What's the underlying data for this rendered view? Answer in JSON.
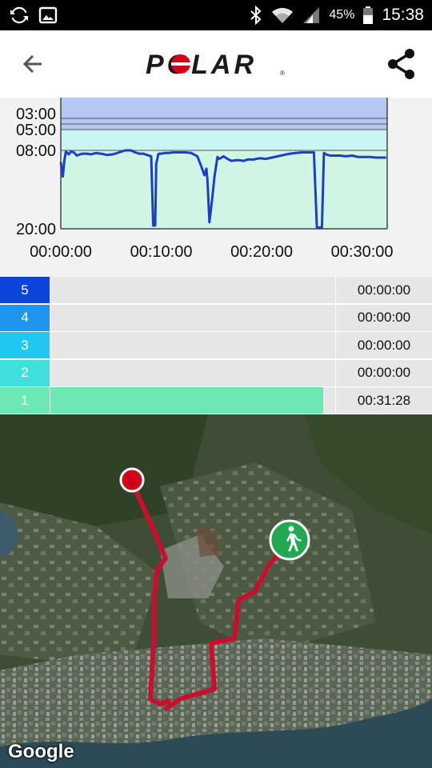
{
  "status_bar": {
    "battery_percent": "45%",
    "time": "15:38",
    "icons": [
      "sync-icon",
      "gallery-icon",
      "bluetooth-icon",
      "wifi-icon",
      "signal-icon",
      "battery-icon"
    ]
  },
  "app_bar": {
    "logo_text": "POLAR",
    "back_icon": "arrow-left-icon",
    "share_icon": "share-icon"
  },
  "chart_data": {
    "type": "area",
    "y_tick_labels": [
      "03:00",
      "05:00",
      "08:00",
      "20:00"
    ],
    "x_tick_labels": [
      "00:00:00",
      "00:10:00",
      "00:20:00",
      "00:30:00"
    ],
    "x_range_minutes": [
      0,
      32.5
    ],
    "y_axis": "pace (min/km), inverted",
    "series": [
      {
        "x": [
          0,
          0.2,
          0.35,
          0.5,
          0.8,
          1.0,
          1.3,
          1.6,
          1.9,
          2.2,
          2.6,
          3.0,
          3.5,
          4.0,
          4.6,
          5.2,
          5.8,
          6.4,
          7.0,
          7.4,
          7.8,
          8.2,
          8.6,
          9.0,
          9.2,
          9.4,
          9.5,
          9.6,
          9.7,
          9.8,
          10.0,
          10.3,
          10.7,
          11.2,
          11.8,
          12.4,
          13.0,
          13.6,
          14.0,
          14.3,
          14.5,
          14.6,
          14.8,
          15.1,
          15.3,
          15.5,
          15.6,
          15.7,
          15.9,
          16.2,
          16.6,
          17.0,
          17.4,
          17.8,
          18.2,
          18.6,
          19.2,
          19.8,
          20.4,
          21.0,
          21.6,
          22.2,
          22.8,
          23.4,
          24.0,
          24.6,
          25.2,
          25.5,
          25.6,
          25.8,
          26.0,
          26.2,
          26.4,
          26.6,
          26.8,
          27.2,
          27.8,
          28.4,
          29.0,
          29.6,
          30.2,
          30.8,
          31.4,
          32.0,
          32.4
        ],
        "y": [
          9.8,
          12.0,
          9.6,
          8.2,
          8.6,
          8.2,
          8.3,
          8.8,
          8.6,
          8.5,
          8.5,
          8.6,
          8.4,
          8.5,
          8.7,
          8.6,
          8.3,
          8.0,
          8.0,
          8.3,
          8.5,
          8.5,
          8.7,
          8.9,
          19.5,
          19.5,
          10.0,
          9.4,
          8.6,
          8.5,
          8.5,
          8.4,
          8.4,
          8.3,
          8.3,
          8.3,
          8.4,
          8.9,
          10.5,
          11.8,
          10.8,
          12.5,
          19.0,
          15.0,
          12.0,
          10.0,
          9.0,
          9.3,
          9.2,
          8.9,
          9.3,
          9.6,
          9.5,
          9.5,
          9.6,
          9.4,
          9.4,
          9.2,
          9.3,
          9.1,
          8.9,
          8.7,
          8.5,
          8.4,
          8.3,
          8.3,
          8.3,
          19.8,
          19.8,
          19.8,
          19.8,
          8.4,
          8.6,
          8.7,
          8.8,
          8.8,
          8.8,
          8.9,
          8.8,
          9.0,
          9.0,
          9.0,
          9.1,
          9.1,
          9.1
        ]
      }
    ],
    "pace_bands": [
      {
        "from": "03:00",
        "to": "05:00",
        "color": "#b7c7f4"
      },
      {
        "from": "05:00",
        "to": "08:00",
        "color": "#c8f4f1"
      },
      {
        "from": "08:00",
        "to": "20:00",
        "color": "#cff5e4"
      }
    ],
    "line_color": "#1f3fbf",
    "grid": true
  },
  "zones": [
    {
      "label": "5",
      "time": "00:00:00",
      "fill": 0.0,
      "color": "#0a44d8"
    },
    {
      "label": "4",
      "time": "00:00:00",
      "fill": 0.0,
      "color": "#1e96ef"
    },
    {
      "label": "3",
      "time": "00:00:00",
      "fill": 0.0,
      "color": "#20c7ee"
    },
    {
      "label": "2",
      "time": "00:00:00",
      "fill": 0.0,
      "color": "#3fe0dc"
    },
    {
      "label": "1",
      "time": "00:31:28",
      "fill": 1.0,
      "color": "#6de8b4"
    }
  ],
  "map": {
    "attribution": "Google",
    "route_color": "#c8102e",
    "start_icon": "walking-person-icon",
    "end_icon": "finish-dot-icon"
  }
}
